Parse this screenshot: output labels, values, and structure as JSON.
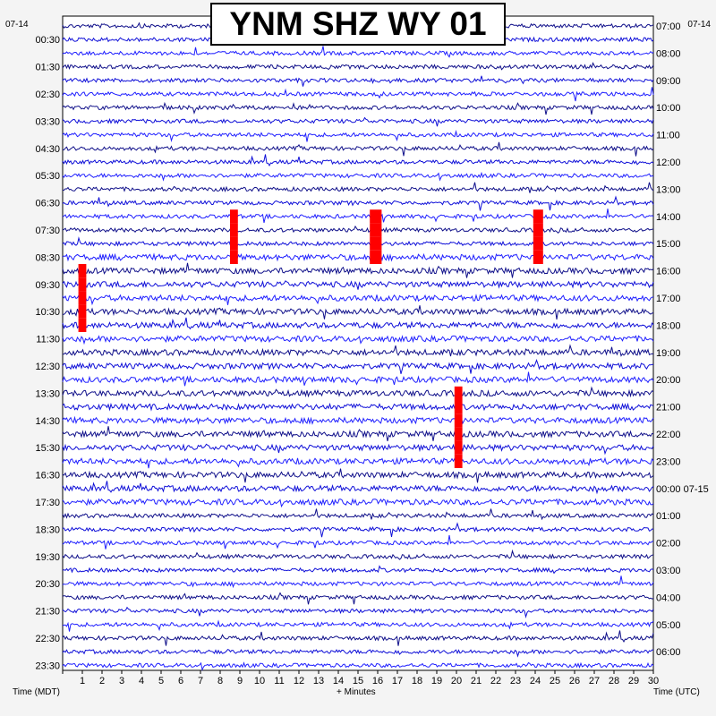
{
  "chart_data": {
    "type": "line",
    "title": "YNM SHZ WY 01",
    "left_date": "07-14",
    "right_date": "07-14",
    "left_axis_label": "Time (MDT)",
    "right_axis_label": "Time (UTC)",
    "x_axis_label": "+ Minutes",
    "x_ticks": [
      "1",
      "2",
      "3",
      "4",
      "5",
      "6",
      "7",
      "8",
      "9",
      "10",
      "11",
      "12",
      "13",
      "14",
      "15",
      "16",
      "17",
      "18",
      "19",
      "20",
      "21",
      "22",
      "23",
      "24",
      "25",
      "26",
      "27",
      "28",
      "29",
      "30"
    ],
    "xlim": [
      0,
      30
    ],
    "left_labels": [
      "00:30",
      "01:30",
      "02:30",
      "03:30",
      "04:30",
      "05:30",
      "06:30",
      "07:30",
      "08:30",
      "09:30",
      "10:30",
      "11:30",
      "12:30",
      "13:30",
      "14:30",
      "15:30",
      "16:30",
      "17:30",
      "18:30",
      "19:30",
      "20:30",
      "21:30",
      "22:30",
      "23:30"
    ],
    "right_labels": [
      "07:00",
      "08:00",
      "09:00",
      "10:00",
      "11:00",
      "12:00",
      "13:00",
      "14:00",
      "15:00",
      "16:00",
      "17:00",
      "18:00",
      "19:00",
      "20:00",
      "21:00",
      "22:00",
      "23:00",
      "00:00 07-15",
      "01:00",
      "02:00",
      "03:00",
      "04:00",
      "05:00",
      "06:00"
    ],
    "trace_count": 48,
    "trace_colors": [
      "#10108a",
      "#1010d8",
      "#2020ff"
    ],
    "clip_color": "#ff0000",
    "clipped_events": [
      {
        "trace": 18,
        "start_minute": 0.8,
        "end_minute": 1.2
      },
      {
        "trace": 19,
        "start_minute": 0.8,
        "end_minute": 1.2
      },
      {
        "trace": 20,
        "start_minute": 0.8,
        "end_minute": 1.2
      },
      {
        "trace": 21,
        "start_minute": 0.8,
        "end_minute": 1.2
      },
      {
        "trace": 22,
        "start_minute": 0.8,
        "end_minute": 1.2
      },
      {
        "trace": 14,
        "start_minute": 8.5,
        "end_minute": 8.9
      },
      {
        "trace": 15,
        "start_minute": 8.5,
        "end_minute": 8.9
      },
      {
        "trace": 16,
        "start_minute": 8.5,
        "end_minute": 8.9
      },
      {
        "trace": 17,
        "start_minute": 8.5,
        "end_minute": 8.9
      },
      {
        "trace": 14,
        "start_minute": 15.6,
        "end_minute": 16.2
      },
      {
        "trace": 15,
        "start_minute": 15.6,
        "end_minute": 16.2
      },
      {
        "trace": 16,
        "start_minute": 15.6,
        "end_minute": 16.2
      },
      {
        "trace": 17,
        "start_minute": 15.6,
        "end_minute": 16.2
      },
      {
        "trace": 14,
        "start_minute": 23.9,
        "end_minute": 24.4
      },
      {
        "trace": 15,
        "start_minute": 23.9,
        "end_minute": 24.4
      },
      {
        "trace": 16,
        "start_minute": 23.9,
        "end_minute": 24.4
      },
      {
        "trace": 17,
        "start_minute": 23.9,
        "end_minute": 24.4
      },
      {
        "trace": 27,
        "start_minute": 19.9,
        "end_minute": 20.3
      },
      {
        "trace": 28,
        "start_minute": 19.9,
        "end_minute": 20.3
      },
      {
        "trace": 29,
        "start_minute": 19.9,
        "end_minute": 20.3
      },
      {
        "trace": 30,
        "start_minute": 19.9,
        "end_minute": 20.3
      },
      {
        "trace": 31,
        "start_minute": 19.9,
        "end_minute": 20.3
      },
      {
        "trace": 32,
        "start_minute": 19.9,
        "end_minute": 20.3
      }
    ],
    "grid": false
  }
}
